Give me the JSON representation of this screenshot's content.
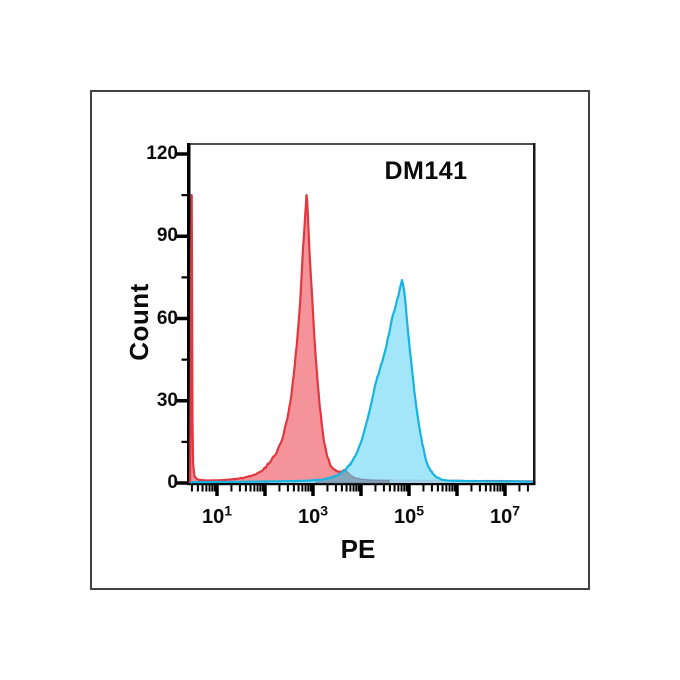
{
  "chart_data": {
    "type": "area",
    "title": "DM141",
    "xlabel": "PE",
    "ylabel": "Count",
    "x_scale": "log",
    "x_decades": [
      0.44,
      7.6
    ],
    "x_tick_base": "10",
    "x_major_tick_decades": [
      1,
      2,
      3,
      4,
      5,
      6,
      7
    ],
    "x_labeled_tick_exponents": [
      1,
      3,
      5,
      7
    ],
    "y_ticks": [
      0,
      30,
      60,
      90,
      120
    ],
    "y_minor_ticks": [
      15,
      45,
      75,
      105
    ],
    "ylim": [
      0,
      124
    ],
    "grid": false,
    "legend": "none",
    "frame": true,
    "colors": {
      "red_stroke": "#E23740",
      "red_fill": "#F5939A",
      "cyan_stroke": "#17B3E1",
      "cyan_fill": "rgba(150,227,249,0.88)",
      "overlap_fill": "rgba(122,136,158,0.65)",
      "overlap_stroke": "rgba(90,105,125,0.5)",
      "axis": "#000000",
      "frame_top": "#4f4f4f",
      "frame_right": "#1a1a1a",
      "outer_border": "#414141",
      "text": "#0b0b0b"
    },
    "series": [
      {
        "name": "red",
        "points": [
          [
            0.44,
            0
          ],
          [
            0.455,
            38
          ],
          [
            0.465,
            85
          ],
          [
            0.472,
            105
          ],
          [
            0.48,
            78
          ],
          [
            0.49,
            22
          ],
          [
            0.502,
            7
          ],
          [
            0.53,
            2.5
          ],
          [
            0.6,
            1.2
          ],
          [
            0.8,
            0.9
          ],
          [
            1.05,
            1.0
          ],
          [
            1.3,
            1.3
          ],
          [
            1.55,
            1.8
          ],
          [
            1.78,
            3.0
          ],
          [
            1.95,
            4.6
          ],
          [
            2.1,
            7.5
          ],
          [
            2.24,
            11
          ],
          [
            2.36,
            16
          ],
          [
            2.46,
            23
          ],
          [
            2.55,
            32
          ],
          [
            2.62,
            43
          ],
          [
            2.68,
            54
          ],
          [
            2.73,
            65
          ],
          [
            2.765,
            76
          ],
          [
            2.79,
            85
          ],
          [
            2.815,
            91
          ],
          [
            2.835,
            97
          ],
          [
            2.855,
            102
          ],
          [
            2.865,
            105
          ],
          [
            2.88,
            103
          ],
          [
            2.9,
            95
          ],
          [
            2.925,
            85
          ],
          [
            2.95,
            77
          ],
          [
            2.975,
            70
          ],
          [
            3.0,
            62
          ],
          [
            3.03,
            53
          ],
          [
            3.06,
            45
          ],
          [
            3.1,
            36
          ],
          [
            3.14,
            28
          ],
          [
            3.18,
            22
          ],
          [
            3.23,
            15
          ],
          [
            3.29,
            10
          ],
          [
            3.35,
            7
          ],
          [
            3.42,
            5.2
          ],
          [
            3.5,
            4.3
          ],
          [
            3.58,
            4.0
          ],
          [
            3.65,
            4.8
          ],
          [
            3.7,
            4.2
          ],
          [
            3.78,
            2.8
          ],
          [
            3.88,
            1.9
          ],
          [
            4.0,
            1.4
          ],
          [
            4.2,
            1.1
          ],
          [
            4.5,
            1.0
          ],
          [
            4.9,
            0.9
          ],
          [
            5.3,
            0.8
          ],
          [
            5.8,
            0.8
          ],
          [
            6.3,
            0.7
          ],
          [
            6.8,
            0.7
          ],
          [
            7.3,
            0.6
          ],
          [
            7.58,
            0.6
          ]
        ]
      },
      {
        "name": "cyan",
        "points": [
          [
            0.44,
            0.3
          ],
          [
            0.9,
            0.35
          ],
          [
            1.5,
            0.45
          ],
          [
            2.1,
            0.55
          ],
          [
            2.6,
            0.7
          ],
          [
            2.95,
            0.9
          ],
          [
            3.18,
            1.2
          ],
          [
            3.35,
            1.8
          ],
          [
            3.48,
            2.6
          ],
          [
            3.6,
            3.8
          ],
          [
            3.7,
            5.2
          ],
          [
            3.8,
            7.5
          ],
          [
            3.9,
            10.5
          ],
          [
            4.0,
            15
          ],
          [
            4.1,
            21
          ],
          [
            4.2,
            28
          ],
          [
            4.3,
            36
          ],
          [
            4.4,
            42
          ],
          [
            4.5,
            48
          ],
          [
            4.58,
            54
          ],
          [
            4.645,
            60
          ],
          [
            4.7,
            63
          ],
          [
            4.755,
            67
          ],
          [
            4.81,
            71
          ],
          [
            4.855,
            74
          ],
          [
            4.9,
            70
          ],
          [
            4.935,
            64
          ],
          [
            4.975,
            56
          ],
          [
            5.02,
            48
          ],
          [
            5.07,
            40
          ],
          [
            5.13,
            31
          ],
          [
            5.2,
            22
          ],
          [
            5.28,
            14
          ],
          [
            5.36,
            8
          ],
          [
            5.45,
            4.5
          ],
          [
            5.55,
            2.4
          ],
          [
            5.68,
            1.2
          ],
          [
            5.85,
            0.8
          ],
          [
            6.2,
            0.7
          ],
          [
            6.7,
            0.6
          ],
          [
            7.2,
            0.6
          ],
          [
            7.58,
            0.5
          ]
        ]
      }
    ]
  }
}
